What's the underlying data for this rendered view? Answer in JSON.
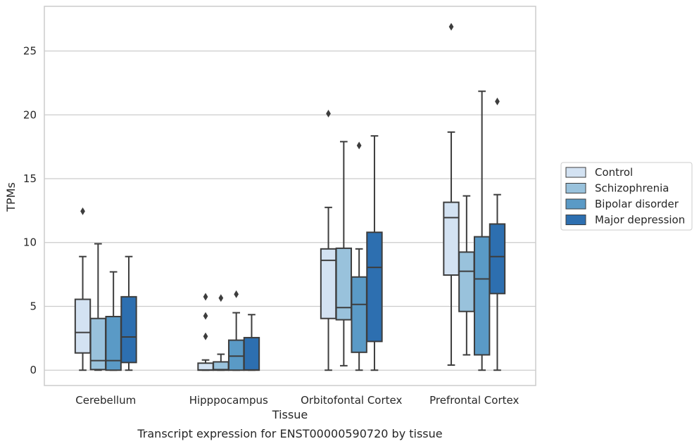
{
  "chart_data": {
    "type": "box",
    "title": "Transcript expression for ENST00000590720 by tissue",
    "xlabel": "Tissue",
    "ylabel": "TPMs",
    "ylim": [
      -1.2,
      28.5
    ],
    "yticks": [
      0,
      5,
      10,
      15,
      20,
      25
    ],
    "grid": "horizontal",
    "legend_position": "right",
    "categories": [
      "Cerebellum",
      "Hipppocampus",
      "Orbitofontal Cortex",
      "Prefrontal Cortex"
    ],
    "series": [
      {
        "name": "Control",
        "color": "#d3e2f2",
        "boxes": [
          {
            "whislo": 0.0,
            "q1": 1.35,
            "med": 2.95,
            "q3": 5.55,
            "whishi": 8.9,
            "fliers": [
              12.45
            ]
          },
          {
            "whislo": 0.0,
            "q1": 0.0,
            "med": 0.02,
            "q3": 0.55,
            "whishi": 0.8,
            "fliers": [
              2.65,
              4.25,
              5.75
            ]
          },
          {
            "whislo": 0.0,
            "q1": 4.05,
            "med": 8.6,
            "q3": 9.5,
            "whishi": 12.75,
            "fliers": [
              20.1
            ]
          },
          {
            "whislo": 0.4,
            "q1": 7.45,
            "med": 11.95,
            "q3": 13.15,
            "whishi": 18.65,
            "fliers": [
              26.9
            ]
          }
        ]
      },
      {
        "name": "Schizophrenia",
        "color": "#99c2dc",
        "boxes": [
          {
            "whislo": 0.0,
            "q1": 0.05,
            "med": 0.75,
            "q3": 4.05,
            "whishi": 9.9,
            "fliers": []
          },
          {
            "whislo": 0.0,
            "q1": 0.0,
            "med": 0.05,
            "q3": 0.65,
            "whishi": 1.25,
            "fliers": [
              5.65
            ]
          },
          {
            "whislo": 0.35,
            "q1": 3.95,
            "med": 4.9,
            "q3": 9.55,
            "whishi": 17.9,
            "fliers": []
          },
          {
            "whislo": 1.2,
            "q1": 4.6,
            "med": 7.75,
            "q3": 9.25,
            "whishi": 13.65,
            "fliers": []
          }
        ]
      },
      {
        "name": "Bipolar disorder",
        "color": "#5a9ac6",
        "boxes": [
          {
            "whislo": 0.0,
            "q1": 0.0,
            "med": 0.75,
            "q3": 4.2,
            "whishi": 7.7,
            "fliers": []
          },
          {
            "whislo": 0.0,
            "q1": 0.0,
            "med": 1.1,
            "q3": 2.35,
            "whishi": 4.5,
            "fliers": [
              5.95
            ]
          },
          {
            "whislo": 0.0,
            "q1": 1.4,
            "med": 5.15,
            "q3": 7.3,
            "whishi": 9.5,
            "fliers": [
              17.6
            ]
          },
          {
            "whislo": 0.0,
            "q1": 1.2,
            "med": 7.15,
            "q3": 10.45,
            "whishi": 21.85,
            "fliers": []
          }
        ]
      },
      {
        "name": "Major depression",
        "color": "#2d6fb0",
        "boxes": [
          {
            "whislo": 0.0,
            "q1": 0.6,
            "med": 2.6,
            "q3": 5.75,
            "whishi": 8.9,
            "fliers": []
          },
          {
            "whislo": 0.0,
            "q1": 0.0,
            "med": 0.02,
            "q3": 2.55,
            "whishi": 4.35,
            "fliers": []
          },
          {
            "whislo": 0.0,
            "q1": 2.25,
            "med": 8.05,
            "q3": 10.8,
            "whishi": 18.35,
            "fliers": []
          },
          {
            "whislo": 0.0,
            "q1": 6.0,
            "med": 8.9,
            "q3": 11.45,
            "whishi": 13.75,
            "fliers": [
              21.05
            ]
          }
        ]
      }
    ]
  },
  "colors": {
    "grid": "#cccccc",
    "frame": "#cccccc",
    "stroke": "#3d3d3d",
    "text": "#262626"
  }
}
